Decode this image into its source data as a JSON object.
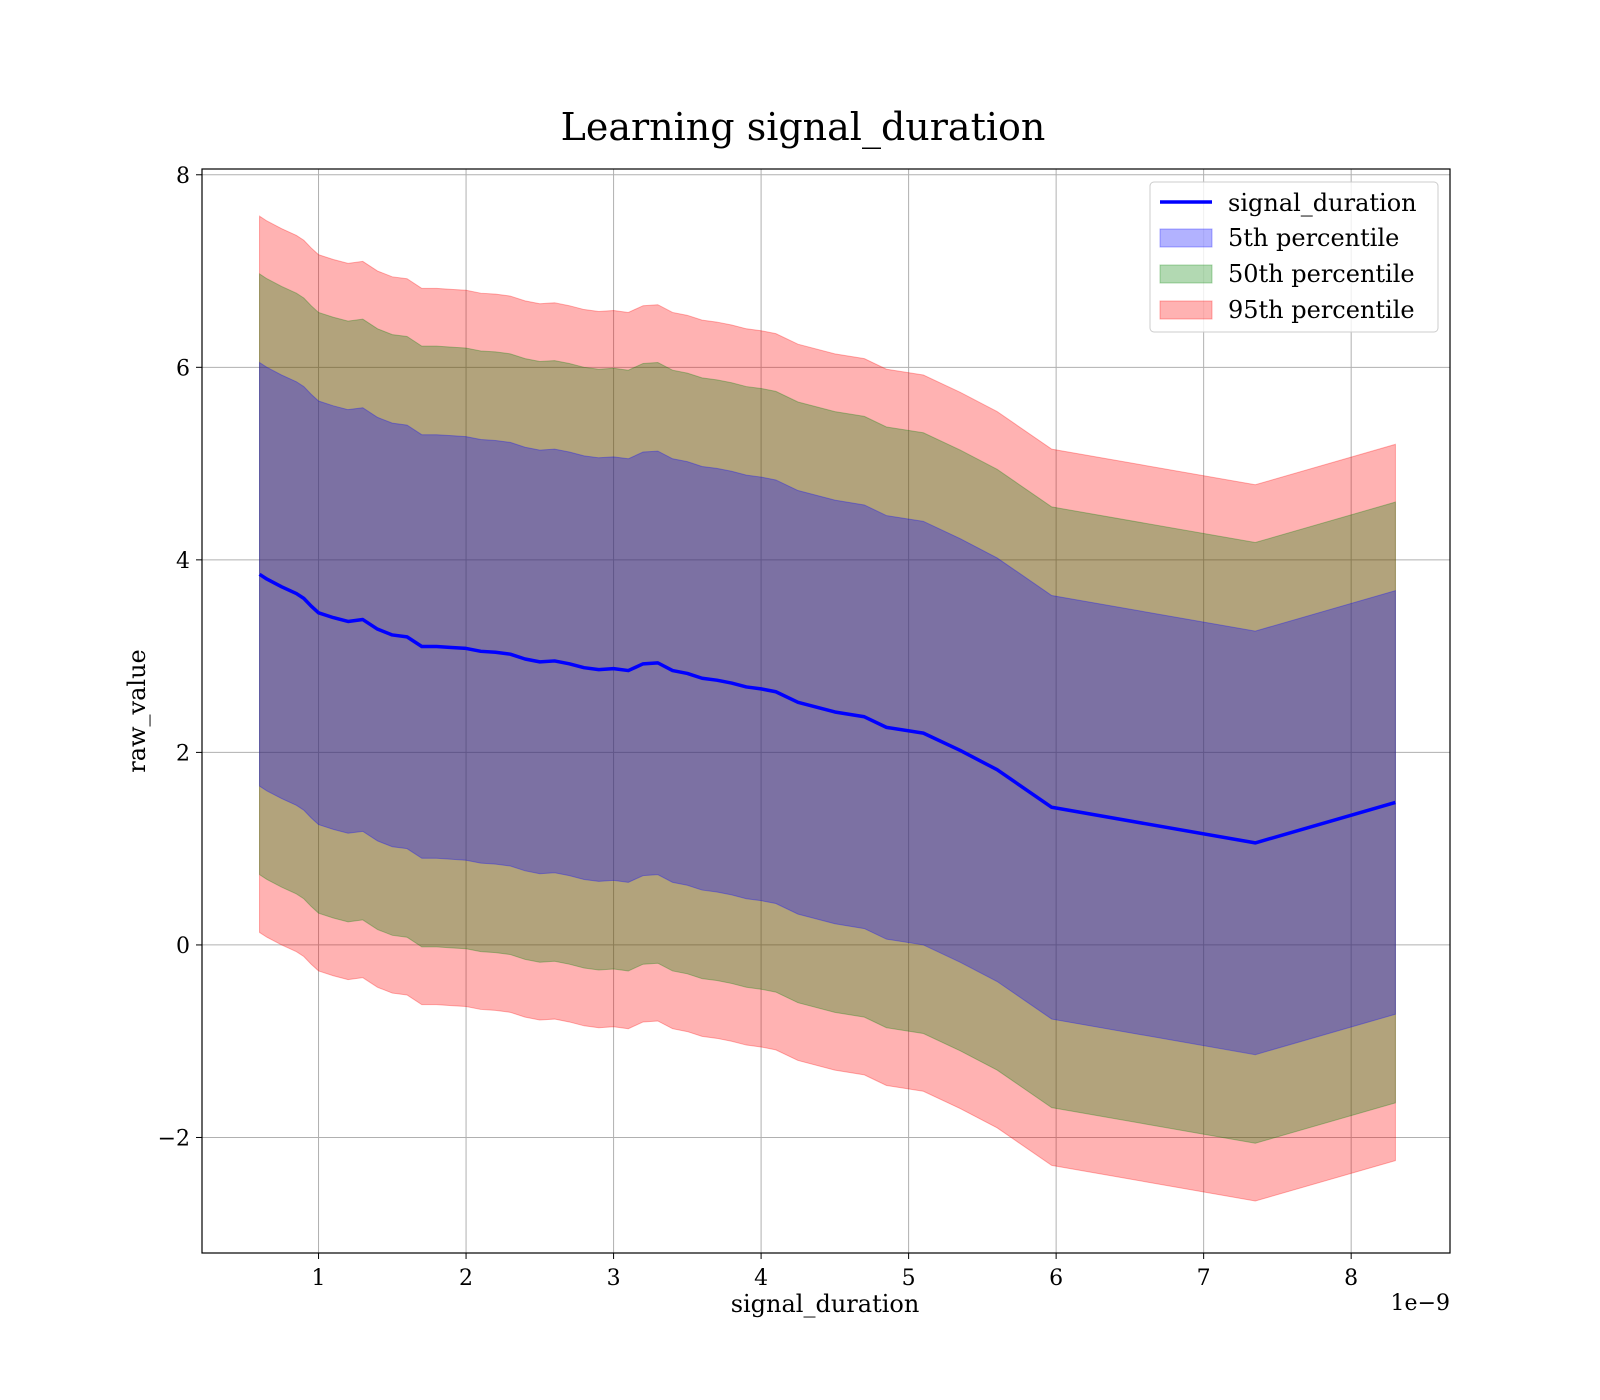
{
  "chart_data": {
    "type": "area",
    "title": "Learning signal_duration",
    "xlabel": "signal_duration",
    "ylabel": "raw_value",
    "x_offset_text": "1e−9",
    "xlim": [
      0.21,
      8.67
    ],
    "ylim": [
      -3.2,
      8.06
    ],
    "x_ticks": [
      1,
      2,
      3,
      4,
      5,
      6,
      7,
      8
    ],
    "y_ticks": [
      -2,
      0,
      2,
      4,
      6,
      8
    ],
    "y_tick_labels": [
      "−2",
      "0",
      "2",
      "4",
      "6",
      "8"
    ],
    "grid": true,
    "legend_position": "top-right",
    "line": {
      "name": "signal_duration",
      "color": "#0000ff",
      "x": [
        0.6,
        0.65,
        0.75,
        0.85,
        0.9,
        0.95,
        1.0,
        1.1,
        1.2,
        1.3,
        1.4,
        1.5,
        1.6,
        1.7,
        1.8,
        1.9,
        2.0,
        2.1,
        2.2,
        2.3,
        2.4,
        2.5,
        2.6,
        2.7,
        2.8,
        2.9,
        3.0,
        3.1,
        3.2,
        3.3,
        3.4,
        3.5,
        3.6,
        3.7,
        3.8,
        3.9,
        4.0,
        4.1,
        4.25,
        4.5,
        4.7,
        4.85,
        5.1,
        5.35,
        5.6,
        5.97,
        7.35,
        8.3
      ],
      "y": [
        3.85,
        3.8,
        3.72,
        3.65,
        3.6,
        3.52,
        3.45,
        3.4,
        3.36,
        3.38,
        3.28,
        3.22,
        3.2,
        3.1,
        3.1,
        3.09,
        3.08,
        3.05,
        3.04,
        3.02,
        2.97,
        2.94,
        2.95,
        2.92,
        2.88,
        2.86,
        2.87,
        2.85,
        2.92,
        2.93,
        2.85,
        2.82,
        2.77,
        2.75,
        2.72,
        2.68,
        2.66,
        2.63,
        2.52,
        2.42,
        2.37,
        2.26,
        2.2,
        2.02,
        1.82,
        1.43,
        1.06,
        1.48
      ]
    },
    "bands": [
      {
        "name": "5th percentile",
        "color": "#0000ff",
        "opacity": 0.3,
        "half_width": 2.2
      },
      {
        "name": "50th percentile",
        "color": "#008000",
        "opacity": 0.3,
        "half_width": 3.12
      },
      {
        "name": "95th percentile",
        "color": "#ff0000",
        "opacity": 0.3,
        "half_width": 3.72
      }
    ]
  }
}
